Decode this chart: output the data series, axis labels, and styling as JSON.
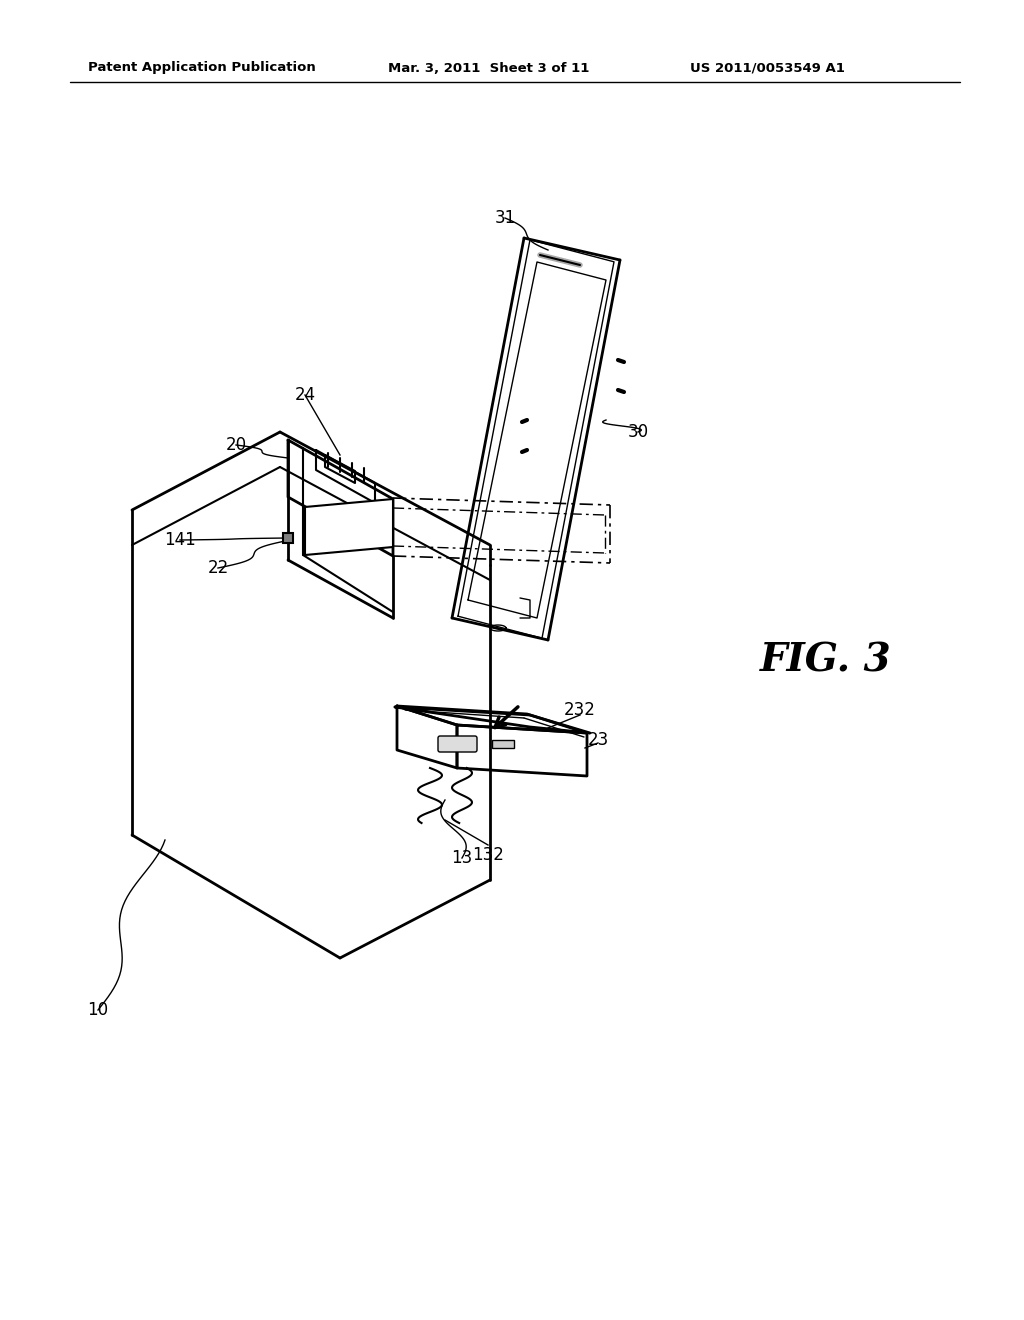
{
  "background_color": "#ffffff",
  "header_left": "Patent Application Publication",
  "header_center": "Mar. 3, 2011  Sheet 3 of 11",
  "header_right": "US 2011/0053549 A1",
  "fig_label": "FIG. 3"
}
